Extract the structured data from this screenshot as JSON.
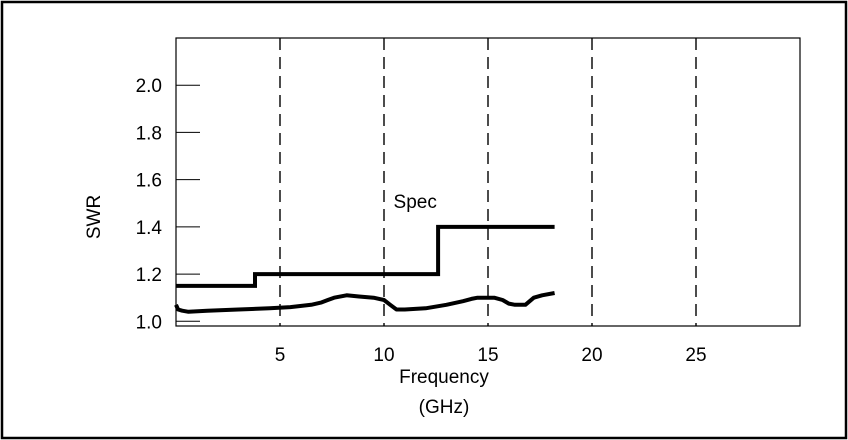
{
  "chart_data": {
    "type": "line",
    "xlabel_line1": "Frequency",
    "xlabel_line2": "(GHz)",
    "ylabel": "SWR",
    "xlim": [
      0,
      30
    ],
    "ylim": [
      0.98,
      2.2
    ],
    "x_ticks": [
      5,
      10,
      15,
      20,
      25
    ],
    "x_tick_labels": [
      "5",
      "10",
      "15",
      "20",
      "25"
    ],
    "y_ticks": [
      1.0,
      1.2,
      1.4,
      1.6,
      1.8,
      2.0
    ],
    "y_tick_labels": [
      "1.0",
      "1.2",
      "1.4",
      "1.6",
      "1.8",
      "2.0"
    ],
    "vertical_gridlines_dashed_at": [
      5,
      10,
      15,
      20,
      25
    ],
    "annotation": {
      "text": "Spec",
      "x": 11.5,
      "y": 1.48
    },
    "series": [
      {
        "name": "Spec",
        "style": "step",
        "x": [
          0,
          3.8,
          3.8,
          12.6,
          12.6,
          18.2
        ],
        "y": [
          1.15,
          1.15,
          1.2,
          1.2,
          1.4,
          1.4
        ]
      },
      {
        "style": "measured",
        "x": [
          0,
          0.1,
          0.3,
          0.6,
          1.5,
          3,
          4.5,
          5.5,
          6.5,
          7,
          7.3,
          7.6,
          8.2,
          8.8,
          9.5,
          10.0,
          10.3,
          10.6,
          11,
          12,
          13,
          13.8,
          14.2,
          14.5,
          14.8,
          15.3,
          15.7,
          16.0,
          16.3,
          16.8,
          17.2,
          17.6,
          18.2
        ],
        "y": [
          1.07,
          1.05,
          1.045,
          1.04,
          1.045,
          1.05,
          1.055,
          1.06,
          1.07,
          1.08,
          1.09,
          1.1,
          1.11,
          1.105,
          1.1,
          1.09,
          1.07,
          1.05,
          1.05,
          1.055,
          1.07,
          1.085,
          1.095,
          1.1,
          1.1,
          1.1,
          1.09,
          1.075,
          1.07,
          1.07,
          1.1,
          1.11,
          1.12
        ]
      }
    ]
  },
  "colors": {
    "line": "#000000",
    "border": "#000000",
    "background": "#ffffff"
  }
}
